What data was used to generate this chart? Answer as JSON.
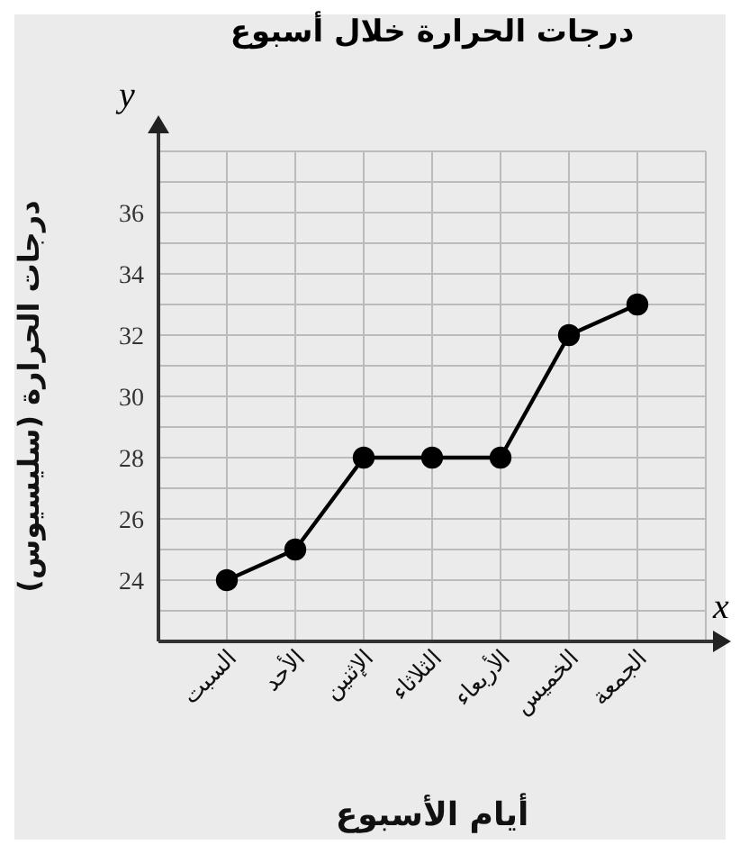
{
  "chart_data": {
    "type": "line",
    "title": "درجات الحرارة خلال أسبوع",
    "xlabel": "أيام الأسبوع",
    "ylabel": "درجات الحرارة (سليسيوس)",
    "annotations": [
      "y",
      "x"
    ],
    "categories": [
      "السبت",
      "الأحد",
      "الإثنين",
      "الثلاثاء",
      "الأربعاء",
      "الخميس",
      "الجمعة"
    ],
    "series": [
      {
        "color": "#000000",
        "values": [
          24,
          25,
          28,
          28,
          28,
          32,
          33
        ]
      }
    ],
    "ylim": [
      22,
      38
    ],
    "yticks": [
      {
        "value": 22,
        "label": null
      },
      {
        "value": 23,
        "label": null
      },
      24,
      {
        "value": 25,
        "label": null
      },
      26,
      {
        "value": 27,
        "label": null
      },
      28,
      {
        "value": 29,
        "label": null
      },
      30,
      {
        "value": 31,
        "label": null
      },
      32,
      {
        "value": 33,
        "label": null
      },
      34,
      {
        "value": 35,
        "label": null
      },
      36,
      {
        "value": 37,
        "label": null
      },
      {
        "value": 38,
        "label": null
      }
    ],
    "grid": true,
    "marker": "circle",
    "line_style": "solid",
    "legend": false
  }
}
